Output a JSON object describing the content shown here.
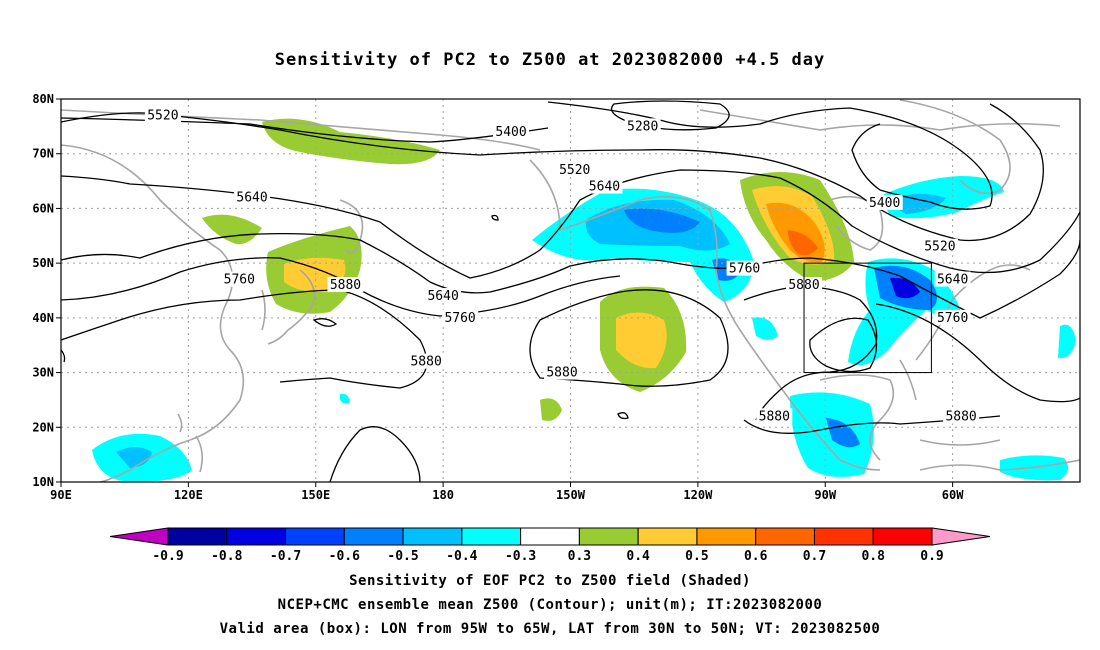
{
  "title": "Sensitivity of PC2 to Z500 at 2023082000 +4.5 day",
  "axes": {
    "lat_labels": [
      "80N",
      "70N",
      "60N",
      "50N",
      "40N",
      "30N",
      "20N",
      "10N"
    ],
    "lon_labels": [
      "90E",
      "120E",
      "150E",
      "180",
      "150W",
      "120W",
      "90W",
      "60W"
    ]
  },
  "contour_labels": [
    {
      "text": "5520",
      "lon": 114,
      "lat": 77
    },
    {
      "text": "5400",
      "lon": 196,
      "lat": 74
    },
    {
      "text": "5280",
      "lon": 227,
      "lat": 75
    },
    {
      "text": "5520",
      "lon": 211,
      "lat": 67
    },
    {
      "text": "5640",
      "lon": 135,
      "lat": 62
    },
    {
      "text": "5640",
      "lon": 218,
      "lat": 64
    },
    {
      "text": "5400",
      "lon": 284,
      "lat": 61
    },
    {
      "text": "5520",
      "lon": 297,
      "lat": 53
    },
    {
      "text": "5760",
      "lon": 251,
      "lat": 49
    },
    {
      "text": "5880",
      "lon": 265,
      "lat": 46
    },
    {
      "text": "5640",
      "lon": 300,
      "lat": 47
    },
    {
      "text": "5760",
      "lon": 300,
      "lat": 40
    },
    {
      "text": "5880",
      "lon": 157,
      "lat": 46
    },
    {
      "text": "5760",
      "lon": 132,
      "lat": 47
    },
    {
      "text": "5640",
      "lon": 180,
      "lat": 44
    },
    {
      "text": "5760",
      "lon": 184,
      "lat": 40
    },
    {
      "text": "5880",
      "lon": 176,
      "lat": 32
    },
    {
      "text": "5880",
      "lon": 208,
      "lat": 30
    },
    {
      "text": "5880",
      "lon": 258,
      "lat": 22
    },
    {
      "text": "5880",
      "lon": 302,
      "lat": 22
    }
  ],
  "colorbar": {
    "labels": [
      "-0.9",
      "-0.8",
      "-0.7",
      "-0.6",
      "-0.5",
      "-0.4",
      "-0.3",
      "0.3",
      "0.4",
      "0.5",
      "0.6",
      "0.7",
      "0.8",
      "0.9"
    ],
    "colors": [
      "#c000c0",
      "#0000a0",
      "#0000e0",
      "#0040ff",
      "#0080ff",
      "#00c0ff",
      "#00ffff",
      "#ffffff",
      "#99cc33",
      "#ffcc33",
      "#ff9900",
      "#ff6600",
      "#ff3300",
      "#ff0000",
      "#ff99cc"
    ]
  },
  "colors": {
    "land": "#a6a6a6",
    "contour": "#000000",
    "grid": "#a0a0a0"
  },
  "valid_box": {
    "lon_min": 265,
    "lon_max": 295,
    "lat_min": 30,
    "lat_max": 50
  },
  "captions": [
    "Sensitivity of EOF PC2 to Z500 field (Shaded)",
    "NCEP+CMC ensemble mean Z500 (Contour); unit(m); IT:2023082000",
    "Valid area (box): LON from 95W to 65W, LAT from 30N to 50N; VT: 2023082500"
  ]
}
